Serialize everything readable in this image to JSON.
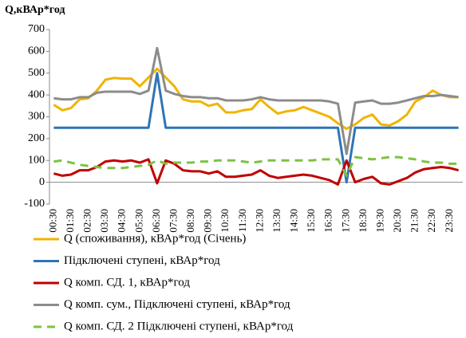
{
  "chart_data": {
    "type": "line",
    "y_label": "Q,кВАр*год",
    "categories": [
      "00:30",
      null,
      "01:30",
      null,
      "02:30",
      null,
      "03:30",
      null,
      "04:30",
      null,
      "05:30",
      null,
      "06:30",
      null,
      "07:30",
      null,
      "08:30",
      null,
      "09:30",
      null,
      "10:30",
      null,
      "11:30",
      null,
      "12:30",
      null,
      "13:30",
      null,
      "14:30",
      null,
      "15:30",
      null,
      "16:30",
      null,
      "17:30",
      null,
      "18:30",
      null,
      "19:30",
      null,
      "20:30",
      null,
      "21:30",
      null,
      "22:30",
      null,
      "23:30",
      null
    ],
    "series": [
      {
        "name": "Q (споживання), кВАр*год (Січень)",
        "color": "#f0b400",
        "dashed": false,
        "values": [
          355,
          330,
          340,
          380,
          385,
          420,
          470,
          478,
          475,
          475,
          440,
          480,
          520,
          480,
          440,
          380,
          370,
          370,
          350,
          360,
          320,
          320,
          330,
          335,
          380,
          345,
          315,
          325,
          330,
          345,
          330,
          315,
          300,
          270,
          245,
          265,
          295,
          310,
          265,
          260,
          280,
          310,
          370,
          390,
          420,
          400,
          390,
          390
        ]
      },
      {
        "name": "Підключені ступені, кВАр*год",
        "color": "#2e75b6",
        "dashed": false,
        "values": [
          250,
          250,
          250,
          250,
          250,
          250,
          250,
          250,
          250,
          250,
          250,
          250,
          500,
          250,
          250,
          250,
          250,
          250,
          250,
          250,
          250,
          250,
          250,
          250,
          250,
          250,
          250,
          250,
          250,
          250,
          250,
          250,
          250,
          250,
          0,
          250,
          250,
          250,
          250,
          250,
          250,
          250,
          250,
          250,
          250,
          250,
          250,
          250
        ]
      },
      {
        "name": "Q комп. СД. 1, кВАр*год",
        "color": "#c00000",
        "dashed": false,
        "values": [
          40,
          30,
          35,
          55,
          55,
          70,
          95,
          100,
          95,
          100,
          90,
          105,
          -5,
          100,
          85,
          55,
          50,
          50,
          40,
          50,
          25,
          25,
          30,
          35,
          55,
          30,
          20,
          25,
          30,
          35,
          30,
          20,
          10,
          -10,
          100,
          0,
          15,
          25,
          -5,
          -10,
          5,
          20,
          45,
          60,
          65,
          70,
          65,
          55
        ]
      },
      {
        "name": "Q комп. сум., Підключені ступені, кВАр*год",
        "color": "#8c8c8c",
        "dashed": false,
        "values": [
          385,
          380,
          380,
          390,
          390,
          410,
          415,
          415,
          415,
          415,
          405,
          420,
          615,
          420,
          405,
          395,
          390,
          390,
          385,
          385,
          375,
          375,
          375,
          380,
          390,
          380,
          375,
          375,
          375,
          375,
          375,
          375,
          370,
          360,
          130,
          365,
          370,
          375,
          360,
          360,
          365,
          375,
          385,
          395,
          395,
          400,
          395,
          390
        ]
      },
      {
        "name": "Q комп. СД. 2 Підключені ступені, кВАр*год",
        "color": "#7dc242",
        "dashed": true,
        "values": [
          95,
          100,
          90,
          80,
          75,
          70,
          65,
          65,
          65,
          70,
          75,
          80,
          100,
          85,
          90,
          90,
          90,
          95,
          95,
          100,
          100,
          100,
          95,
          90,
          95,
          100,
          100,
          100,
          100,
          100,
          100,
          105,
          105,
          105,
          30,
          115,
          110,
          105,
          110,
          115,
          115,
          110,
          105,
          95,
          90,
          90,
          85,
          85
        ]
      }
    ],
    "ylim": [
      -100,
      700
    ],
    "yticks": [
      -100,
      0,
      100,
      200,
      300,
      400,
      500,
      600,
      700
    ],
    "grid": false
  }
}
